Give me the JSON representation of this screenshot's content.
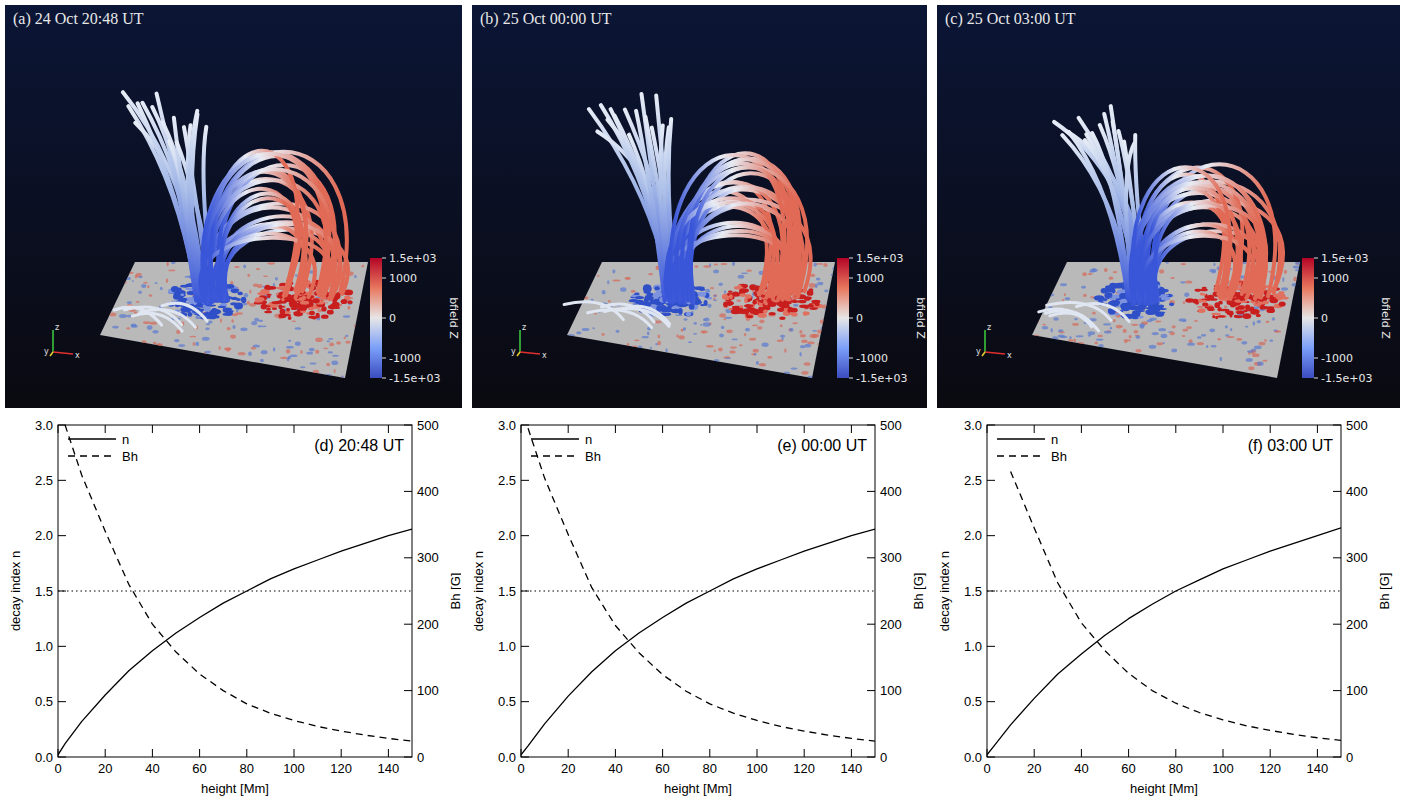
{
  "images": [
    {
      "title": "(a) 24 Oct 20:48 UT",
      "colorbar": {
        "label": "bfield Z",
        "range": [
          -1500,
          1500
        ],
        "ticks": [
          {
            "value": 1500,
            "label": "1.5e+03"
          },
          1000,
          0,
          -1000,
          {
            "value": -1500,
            "label": "-1.5e+03"
          }
        ]
      },
      "axis_labels": [
        "z",
        "y",
        "x"
      ]
    },
    {
      "title": "(b) 25 Oct 00:00 UT",
      "colorbar": {
        "label": "bfield Z",
        "range": [
          -1500,
          1500
        ],
        "ticks": [
          {
            "value": 1500,
            "label": "1.5e+03"
          },
          1000,
          0,
          -1000,
          {
            "value": -1500,
            "label": "-1.5e+03"
          }
        ]
      },
      "axis_labels": [
        "z",
        "y",
        "x"
      ]
    },
    {
      "title": "(c) 25 Oct 03:00 UT",
      "colorbar": {
        "label": "bfield Z",
        "range": [
          -1500,
          1500
        ],
        "ticks": [
          {
            "value": 1500,
            "label": "1.5e+03"
          },
          1000,
          0,
          -1000,
          {
            "value": -1500,
            "label": "-1.5e+03"
          }
        ]
      },
      "axis_labels": [
        "z",
        "y",
        "x"
      ]
    }
  ],
  "chart_data": [
    {
      "type": "line",
      "title": "(d) 20:48 UT",
      "xlabel": "height [Mm]",
      "ylabel": "decay index n",
      "y2label": "Bh [G]",
      "x": [
        0,
        3,
        10,
        20,
        30,
        40,
        50,
        60,
        70,
        80,
        90,
        100,
        110,
        120,
        130,
        140,
        150
      ],
      "xlim": [
        0,
        150
      ],
      "xticks": [
        0,
        20,
        40,
        60,
        80,
        100,
        120,
        140
      ],
      "ylim": [
        0,
        3
      ],
      "yticks": [
        {
          "value": 0,
          "label": "0.0"
        },
        {
          "value": 0.5,
          "label": "0.5"
        },
        {
          "value": 1,
          "label": "1.0"
        },
        {
          "value": 1.5,
          "label": "1.5"
        },
        {
          "value": 2,
          "label": "2.0"
        },
        {
          "value": 2.5,
          "label": "2.5"
        },
        {
          "value": 3,
          "label": "3.0"
        }
      ],
      "y2lim": [
        0,
        500
      ],
      "y2ticks": [
        0,
        100,
        200,
        300,
        400,
        500
      ],
      "legend": "upper left",
      "series": [
        {
          "name": "n",
          "color": "#000000",
          "line_style": "solid",
          "values": [
            0.02,
            0.12,
            0.32,
            0.56,
            0.78,
            0.96,
            1.12,
            1.26,
            1.39,
            1.5,
            1.61,
            1.7,
            1.78,
            1.86,
            1.93,
            2.0,
            2.06
          ]
        },
        {
          "name": "Bh",
          "color": "#000000",
          "line_style": "dashed",
          "axis": "y2",
          "values": [
            null,
            500,
            425,
            340,
            260,
            200,
            158,
            125,
            100,
            80,
            66,
            55,
            46,
            39,
            33,
            28,
            24
          ]
        }
      ],
      "annotations": [
        {
          "y": 1.5,
          "line_style": "dotted"
        }
      ]
    },
    {
      "type": "line",
      "title": "(e) 00:00 UT",
      "xlabel": "height [Mm]",
      "ylabel": "decay index n",
      "y2label": "Bh [G]",
      "x": [
        0,
        3,
        10,
        20,
        30,
        40,
        50,
        60,
        70,
        80,
        90,
        100,
        110,
        120,
        130,
        140,
        150
      ],
      "xlim": [
        0,
        150
      ],
      "xticks": [
        0,
        20,
        40,
        60,
        80,
        100,
        120,
        140
      ],
      "ylim": [
        0,
        3
      ],
      "yticks": [
        {
          "value": 0,
          "label": "0.0"
        },
        {
          "value": 0.5,
          "label": "0.5"
        },
        {
          "value": 1,
          "label": "1.0"
        },
        {
          "value": 1.5,
          "label": "1.5"
        },
        {
          "value": 2,
          "label": "2.0"
        },
        {
          "value": 2.5,
          "label": "2.5"
        },
        {
          "value": 3,
          "label": "3.0"
        }
      ],
      "y2lim": [
        0,
        500
      ],
      "y2ticks": [
        0,
        100,
        200,
        300,
        400,
        500
      ],
      "legend": "upper left",
      "series": [
        {
          "name": "n",
          "color": "#000000",
          "line_style": "solid",
          "values": [
            0.02,
            0.1,
            0.3,
            0.55,
            0.77,
            0.96,
            1.12,
            1.26,
            1.39,
            1.5,
            1.61,
            1.7,
            1.78,
            1.86,
            1.93,
            2.0,
            2.06
          ]
        },
        {
          "name": "Bh",
          "color": "#000000",
          "line_style": "dashed",
          "axis": "y2",
          "values": [
            null,
            495,
            420,
            335,
            255,
            198,
            157,
            124,
            99,
            80,
            66,
            55,
            46,
            39,
            33,
            28,
            24
          ]
        }
      ],
      "annotations": [
        {
          "y": 1.5,
          "line_style": "dotted"
        }
      ]
    },
    {
      "type": "line",
      "title": "(f) 03:00 UT",
      "xlabel": "height [Mm]",
      "ylabel": "decay index n",
      "y2label": "Bh [G]",
      "x": [
        0,
        3,
        10,
        20,
        30,
        40,
        50,
        60,
        70,
        80,
        90,
        100,
        110,
        120,
        130,
        140,
        150
      ],
      "xlim": [
        0,
        150
      ],
      "xticks": [
        0,
        20,
        40,
        60,
        80,
        100,
        120,
        140
      ],
      "ylim": [
        0,
        3
      ],
      "yticks": [
        {
          "value": 0,
          "label": "0.0"
        },
        {
          "value": 0.5,
          "label": "0.5"
        },
        {
          "value": 1,
          "label": "1.0"
        },
        {
          "value": 1.5,
          "label": "1.5"
        },
        {
          "value": 2,
          "label": "2.0"
        },
        {
          "value": 2.5,
          "label": "2.5"
        },
        {
          "value": 3,
          "label": "3.0"
        }
      ],
      "y2lim": [
        0,
        500
      ],
      "y2ticks": [
        0,
        100,
        200,
        300,
        400,
        500
      ],
      "legend": "upper left",
      "series": [
        {
          "name": "n",
          "color": "#000000",
          "line_style": "solid",
          "values": [
            0.02,
            0.1,
            0.29,
            0.53,
            0.75,
            0.93,
            1.1,
            1.25,
            1.38,
            1.5,
            1.6,
            1.7,
            1.78,
            1.86,
            1.93,
            2.0,
            2.07
          ]
        },
        {
          "name": "Bh",
          "color": "#000000",
          "line_style": "dashed",
          "axis": "y2",
          "values": [
            null,
            null,
            430,
            345,
            262,
            202,
            160,
            126,
            100,
            81,
            67,
            56,
            47,
            40,
            34,
            29,
            25
          ]
        }
      ],
      "annotations": [
        {
          "y": 1.5,
          "line_style": "dotted"
        }
      ]
    }
  ]
}
